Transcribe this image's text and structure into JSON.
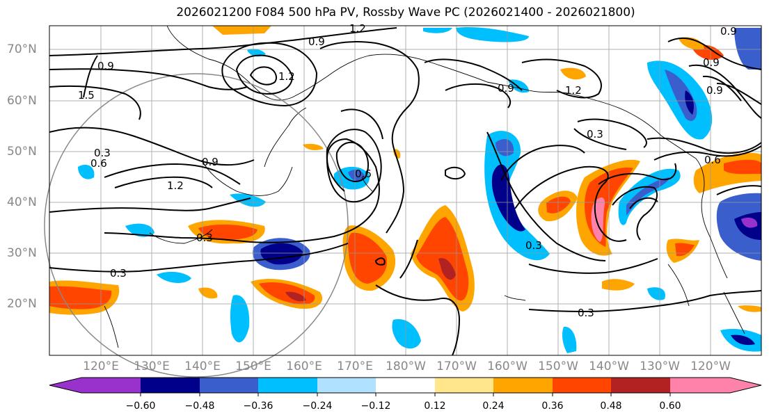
{
  "title": "2026021200 F084 500 hPa PV, Rossby Wave PC (2026021400 - 2026021800)",
  "lat_labels": [
    "70°N",
    "60°N",
    "50°N",
    "40°N",
    "30°N",
    "20°N"
  ],
  "lon_labels": [
    "120°E",
    "130°E",
    "140°E",
    "150°E",
    "160°E",
    "170°E",
    "180°W",
    "170°W",
    "160°W",
    "150°W",
    "140°W",
    "130°W",
    "120°W"
  ],
  "contour_labels": [
    "1.2",
    "0.9",
    "0.9",
    "1.5",
    "1.2",
    "0.9",
    "0.3",
    "0.6",
    "1.2",
    "0.6",
    "0.3",
    "0.3",
    "0.9",
    "1.2",
    "0.3",
    "0.3",
    "0.6",
    "0.3",
    "0.9",
    "0.9",
    "0.9"
  ],
  "colorbar": {
    "tick_labels": [
      "−0.60",
      "−0.48",
      "−0.36",
      "−0.24",
      "−0.12",
      "0.12",
      "0.24",
      "0.36",
      "0.48",
      "0.60"
    ],
    "colors": [
      "#9932cc",
      "#00008b",
      "#3a5fcd",
      "#00bfff",
      "#b0e2ff",
      "#ffffff",
      "#ffe68a",
      "#ffa500",
      "#ff4500",
      "#b22222",
      "#ff82ab"
    ]
  },
  "legend": {
    "contour_field": "500 hPa PV",
    "shaded_field": "Rossby Wave PC"
  }
}
